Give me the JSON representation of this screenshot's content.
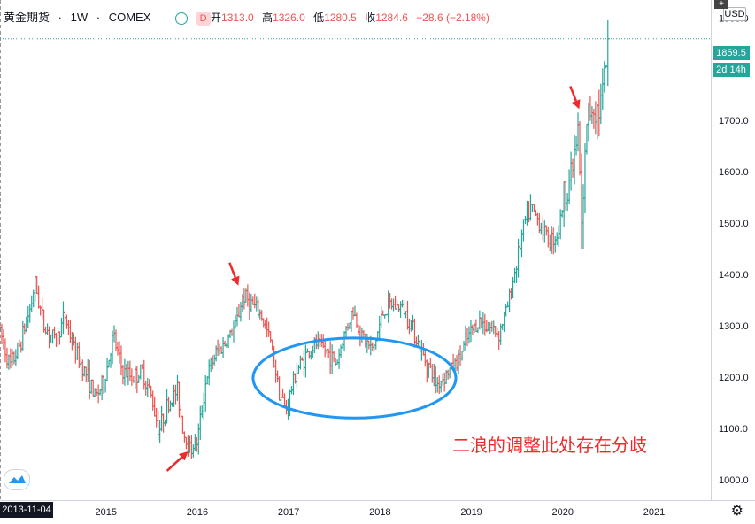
{
  "header": {
    "symbol": "黄金期货",
    "interval": "1W",
    "exchange": "COMEX",
    "status_badge": "D",
    "ohlc": [
      {
        "k": "开",
        "v": "1313.0"
      },
      {
        "k": "高",
        "v": "1326.0"
      },
      {
        "k": "低",
        "v": "1280.5"
      },
      {
        "k": "收",
        "v": "1284.6"
      }
    ],
    "change": "−28.6 (−2.18%)",
    "currency": "USD"
  },
  "last_price_label": "1859.5",
  "countdown_label": "2d 14h",
  "crosshair_date": "2013-11-04",
  "annotation_text": "二浪的调整此处存在分歧",
  "colors": {
    "up": "#26a69a",
    "down": "#ef5350",
    "annotation": "#ef2a2a",
    "ellipse": "#2196f3",
    "last_price": "#26a69a"
  },
  "icons": {
    "logo": "tradingview-logo-icon",
    "settings": "gear-icon"
  },
  "chart_data": {
    "type": "ohlc",
    "ylim": [
      960,
      1935
    ],
    "y_ticks": [
      1000,
      1100,
      1200,
      1300,
      1400,
      1500,
      1600,
      1700,
      1800,
      1900
    ],
    "x_ticks": [
      {
        "label": "2015",
        "t": 2015.0
      },
      {
        "label": "2016",
        "t": 2016.0
      },
      {
        "label": "2017",
        "t": 2017.0
      },
      {
        "label": "2018",
        "t": 2018.0
      },
      {
        "label": "2019",
        "t": 2019.0
      },
      {
        "label": "2020",
        "t": 2020.0
      },
      {
        "label": "2021",
        "t": 2021.0
      }
    ],
    "xlim": [
      2013.84,
      2021.62
    ],
    "anchors": [
      [
        2013.84,
        1290
      ],
      [
        2013.95,
        1220
      ],
      [
        2014.05,
        1260
      ],
      [
        2014.18,
        1340
      ],
      [
        2014.22,
        1385
      ],
      [
        2014.32,
        1300
      ],
      [
        2014.45,
        1270
      ],
      [
        2014.55,
        1320
      ],
      [
        2014.65,
        1255
      ],
      [
        2014.8,
        1200
      ],
      [
        2014.88,
        1160
      ],
      [
        2014.98,
        1190
      ],
      [
        2015.08,
        1280
      ],
      [
        2015.18,
        1210
      ],
      [
        2015.3,
        1200
      ],
      [
        2015.4,
        1210
      ],
      [
        2015.5,
        1160
      ],
      [
        2015.58,
        1095
      ],
      [
        2015.65,
        1135
      ],
      [
        2015.78,
        1175
      ],
      [
        2015.85,
        1090
      ],
      [
        2015.92,
        1060
      ],
      [
        2016.0,
        1075
      ],
      [
        2016.1,
        1200
      ],
      [
        2016.2,
        1245
      ],
      [
        2016.3,
        1265
      ],
      [
        2016.42,
        1300
      ],
      [
        2016.5,
        1360
      ],
      [
        2016.58,
        1345
      ],
      [
        2016.7,
        1320
      ],
      [
        2016.8,
        1270
      ],
      [
        2016.9,
        1170
      ],
      [
        2016.97,
        1135
      ],
      [
        2017.08,
        1210
      ],
      [
        2017.18,
        1240
      ],
      [
        2017.3,
        1265
      ],
      [
        2017.42,
        1250
      ],
      [
        2017.52,
        1225
      ],
      [
        2017.62,
        1290
      ],
      [
        2017.7,
        1330
      ],
      [
        2017.8,
        1280
      ],
      [
        2017.92,
        1250
      ],
      [
        2018.03,
        1325
      ],
      [
        2018.12,
        1340
      ],
      [
        2018.25,
        1335
      ],
      [
        2018.35,
        1300
      ],
      [
        2018.45,
        1250
      ],
      [
        2018.55,
        1215
      ],
      [
        2018.62,
        1185
      ],
      [
        2018.72,
        1205
      ],
      [
        2018.85,
        1230
      ],
      [
        2018.97,
        1280
      ],
      [
        2019.08,
        1310
      ],
      [
        2019.18,
        1300
      ],
      [
        2019.3,
        1285
      ],
      [
        2019.4,
        1340
      ],
      [
        2019.48,
        1410
      ],
      [
        2019.58,
        1500
      ],
      [
        2019.65,
        1530
      ],
      [
        2019.75,
        1500
      ],
      [
        2019.85,
        1465
      ],
      [
        2019.95,
        1480
      ],
      [
        2020.02,
        1560
      ],
      [
        2020.1,
        1600
      ],
      [
        2020.17,
        1680
      ],
      [
        2020.21,
        1470
      ],
      [
        2020.26,
        1700
      ],
      [
        2020.32,
        1730
      ],
      [
        2020.4,
        1720
      ],
      [
        2020.46,
        1780
      ],
      [
        2020.5,
        1860
      ]
    ],
    "annotation_ellipse": {
      "t_center": 2017.72,
      "y_center": 1198,
      "t_radius": 1.11,
      "y_radius": 78
    },
    "arrows": [
      {
        "t": 2016.45,
        "y": 1378,
        "direction": "down-right"
      },
      {
        "t": 2015.9,
        "y": 1055,
        "direction": "up-right"
      },
      {
        "t": 2020.18,
        "y": 1722,
        "direction": "down-right"
      }
    ],
    "last_price": 1859.5
  }
}
